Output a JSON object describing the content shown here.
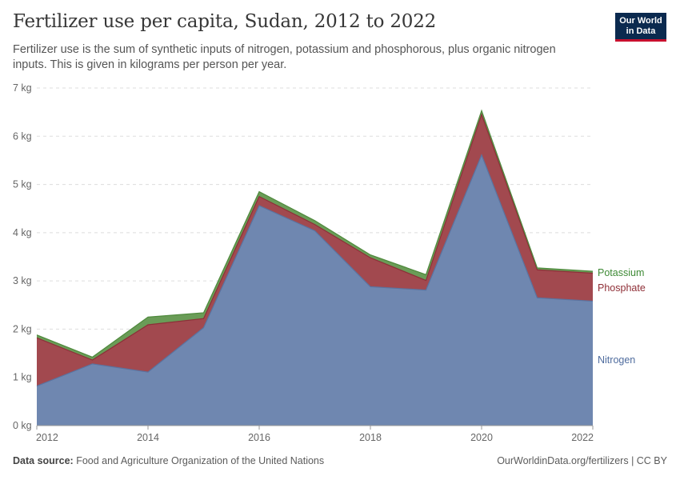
{
  "header": {
    "title": "Fertilizer use per capita, Sudan, 2012 to 2022",
    "subtitle": "Fertilizer use is the sum of synthetic inputs of nitrogen, potassium and phosphorous, plus organic nitrogen inputs. This is given in kilograms per person per year."
  },
  "logo": {
    "line1": "Our World",
    "line2": "in Data",
    "bg_color": "#0b2a4f",
    "accent_color": "#c8102e"
  },
  "footer": {
    "source_label": "Data source:",
    "source_text": "Food and Agriculture Organization of the United Nations",
    "right_text": "OurWorldinData.org/fertilizers | CC BY"
  },
  "chart_data": {
    "type": "area",
    "stacked": true,
    "x": [
      2012,
      2013,
      2014,
      2015,
      2016,
      2017,
      2018,
      2019,
      2020,
      2021,
      2022
    ],
    "x_ticks": [
      2012,
      2014,
      2016,
      2018,
      2020,
      2022
    ],
    "y_ticks": [
      0,
      1,
      2,
      3,
      4,
      5,
      6,
      7
    ],
    "y_tick_labels": [
      "0 kg",
      "1 kg",
      "2 kg",
      "3 kg",
      "4 kg",
      "5 kg",
      "6 kg",
      "7 kg"
    ],
    "ylim": [
      0,
      7
    ],
    "grid": "horizontal dashed",
    "legend_placement": "right, inline labels",
    "series": [
      {
        "name": "Nitrogen",
        "color": "#6f87b0",
        "values": [
          0.82,
          1.28,
          1.11,
          2.03,
          4.56,
          4.04,
          2.88,
          2.81,
          5.61,
          2.65,
          2.58
        ]
      },
      {
        "name": "Phosphate",
        "color": "#a2494f",
        "values": [
          1.0,
          0.08,
          0.98,
          0.19,
          0.19,
          0.13,
          0.6,
          0.2,
          0.84,
          0.58,
          0.58
        ]
      },
      {
        "name": "Potassium",
        "color": "#6a9c57",
        "values": [
          0.06,
          0.06,
          0.16,
          0.12,
          0.1,
          0.08,
          0.06,
          0.12,
          0.08,
          0.04,
          0.04
        ]
      }
    ]
  }
}
